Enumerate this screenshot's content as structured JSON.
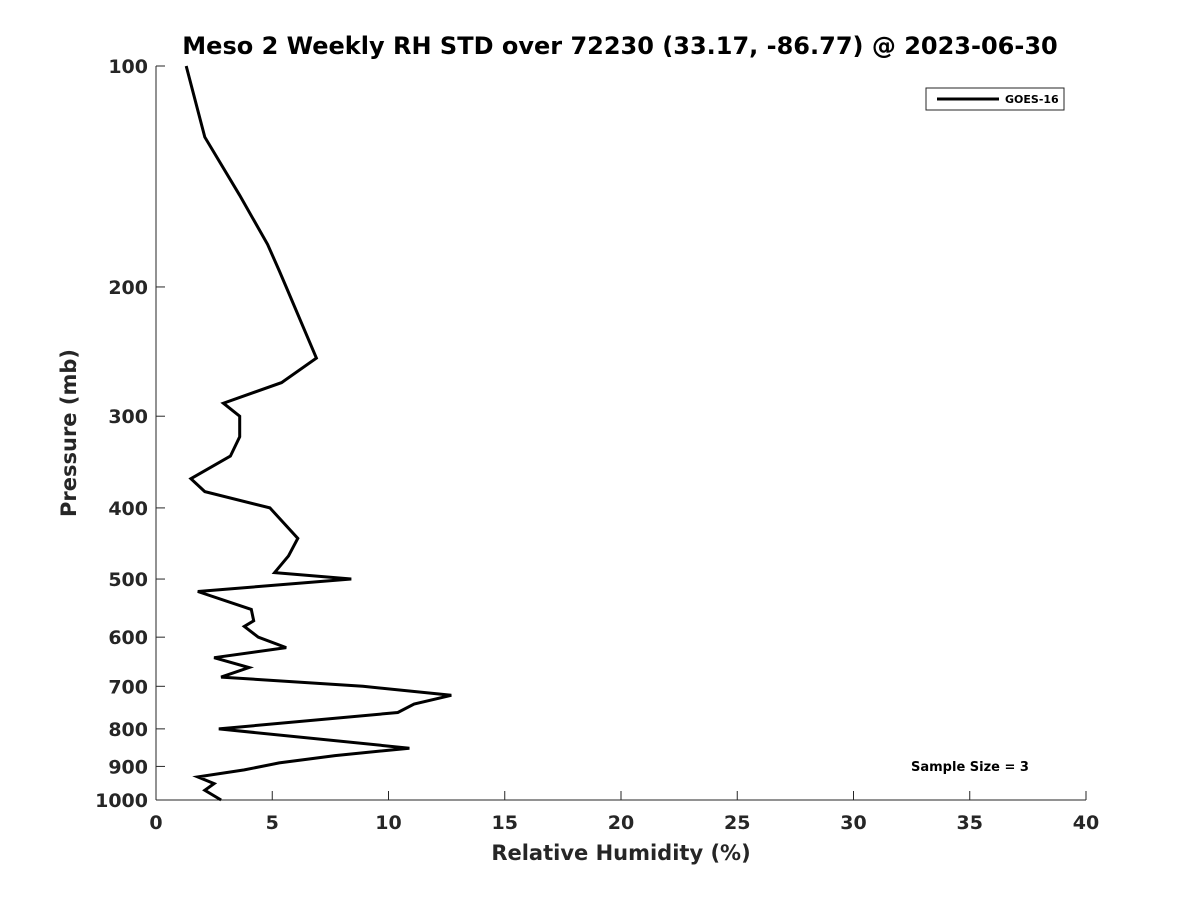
{
  "chart_data": {
    "type": "line",
    "title": "Meso 2 Weekly RH STD over 72230 (33.17, -86.77) @ 2023-06-30",
    "xlabel": "Relative Humidity (%)",
    "ylabel": "Pressure (mb)",
    "xlim": [
      0,
      40
    ],
    "ylim": [
      100,
      1000
    ],
    "y_scale": "log",
    "y_reversed": true,
    "grid": false,
    "x_ticks": [
      0,
      5,
      10,
      15,
      20,
      25,
      30,
      35,
      40
    ],
    "y_ticks": [
      100,
      200,
      300,
      400,
      500,
      600,
      700,
      800,
      900,
      1000
    ],
    "legend": {
      "placement": "top-right",
      "entries": [
        "GOES-16"
      ]
    },
    "annotation": "Sample Size = 3",
    "series": [
      {
        "name": "GOES-16",
        "color": "#000000",
        "points": [
          [
            1.3,
            100
          ],
          [
            2.1,
            125
          ],
          [
            3.6,
            150
          ],
          [
            4.8,
            175
          ],
          [
            5.3,
            190
          ],
          [
            5.6,
            200
          ],
          [
            6.9,
            250
          ],
          [
            5.4,
            270
          ],
          [
            2.9,
            288
          ],
          [
            3.6,
            300
          ],
          [
            3.6,
            320
          ],
          [
            3.2,
            340
          ],
          [
            1.5,
            365
          ],
          [
            2.1,
            380
          ],
          [
            4.9,
            400
          ],
          [
            6.1,
            440
          ],
          [
            5.7,
            465
          ],
          [
            5.1,
            490
          ],
          [
            8.4,
            500
          ],
          [
            1.8,
            520
          ],
          [
            4.1,
            550
          ],
          [
            4.2,
            570
          ],
          [
            3.8,
            580
          ],
          [
            4.4,
            600
          ],
          [
            5.6,
            620
          ],
          [
            2.5,
            640
          ],
          [
            4.0,
            660
          ],
          [
            2.8,
            680
          ],
          [
            8.9,
            700
          ],
          [
            12.7,
            720
          ],
          [
            11.1,
            740
          ],
          [
            10.4,
            760
          ],
          [
            2.7,
            800
          ],
          [
            10.9,
            850
          ],
          [
            7.7,
            870
          ],
          [
            5.3,
            890
          ],
          [
            3.8,
            910
          ],
          [
            1.8,
            930
          ],
          [
            2.5,
            950
          ],
          [
            2.1,
            970
          ],
          [
            2.8,
            1000
          ]
        ]
      }
    ]
  }
}
